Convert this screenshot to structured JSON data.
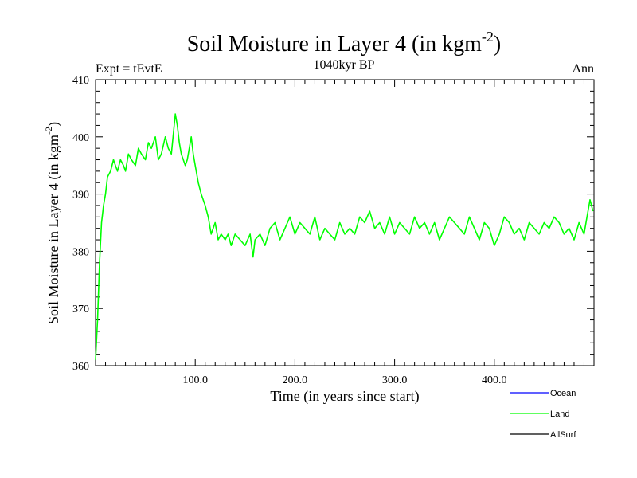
{
  "chart_data": {
    "type": "line",
    "title_main": "Soil Moisture in Layer 4 (in kgm",
    "title_sup": "-2",
    "title_close": ")",
    "subtitle_left": "Expt = tEvtE",
    "subtitle_center": "1040kyr BP",
    "subtitle_right": "Ann",
    "xlabel": "Time (in years since start)",
    "ylabel_main": "Soil Moisture in Layer 4 (in kgm",
    "ylabel_sup": "-2",
    "ylabel_close": ")",
    "xlim": [
      0,
      500
    ],
    "ylim": [
      360,
      410
    ],
    "xticks": [
      100,
      200,
      300,
      400
    ],
    "xtick_labels": [
      "100.0",
      "200.0",
      "300.0",
      "400.0"
    ],
    "yticks": [
      360,
      370,
      380,
      390,
      400,
      410
    ],
    "ytick_labels": [
      "360",
      "370",
      "380",
      "390",
      "400",
      "410"
    ],
    "legend": [
      {
        "name": "Ocean",
        "color": "#0000ff"
      },
      {
        "name": "Land",
        "color": "#00ff00"
      },
      {
        "name": "AllSurf",
        "color": "#000000"
      }
    ],
    "series": [
      {
        "name": "Land",
        "color": "#00ff00",
        "x": [
          0,
          2,
          4,
          6,
          8,
          10,
          12,
          15,
          18,
          20,
          22,
          25,
          28,
          30,
          33,
          36,
          40,
          43,
          46,
          50,
          53,
          56,
          60,
          63,
          66,
          70,
          73,
          76,
          80,
          82,
          84,
          86,
          88,
          90,
          92,
          94,
          96,
          98,
          100,
          103,
          106,
          110,
          113,
          116,
          120,
          123,
          126,
          130,
          133,
          136,
          140,
          145,
          150,
          155,
          158,
          160,
          165,
          170,
          175,
          180,
          185,
          190,
          195,
          200,
          205,
          210,
          215,
          220,
          225,
          230,
          235,
          240,
          245,
          250,
          255,
          260,
          265,
          270,
          275,
          280,
          285,
          290,
          295,
          300,
          305,
          310,
          315,
          320,
          325,
          330,
          335,
          340,
          345,
          350,
          355,
          360,
          365,
          370,
          375,
          380,
          385,
          390,
          395,
          400,
          405,
          410,
          415,
          420,
          425,
          430,
          435,
          440,
          445,
          450,
          455,
          460,
          465,
          470,
          475,
          480,
          485,
          490,
          493,
          496,
          499
        ],
        "values": [
          361,
          368,
          378,
          385,
          388,
          390,
          393,
          394,
          396,
          395,
          394,
          396,
          395,
          394,
          397,
          396,
          395,
          398,
          397,
          396,
          399,
          398,
          400,
          396,
          397,
          400,
          398,
          397,
          404,
          402,
          399,
          397,
          396,
          395,
          396,
          398,
          400,
          397,
          395,
          392,
          390,
          388,
          386,
          383,
          385,
          382,
          383,
          382,
          383,
          381,
          383,
          382,
          381,
          383,
          379,
          382,
          383,
          381,
          384,
          385,
          382,
          384,
          386,
          383,
          385,
          384,
          383,
          386,
          382,
          384,
          383,
          382,
          385,
          383,
          384,
          383,
          386,
          385,
          387,
          384,
          385,
          383,
          386,
          383,
          385,
          384,
          383,
          386,
          384,
          385,
          383,
          385,
          382,
          384,
          386,
          385,
          384,
          383,
          386,
          384,
          382,
          385,
          384,
          381,
          383,
          386,
          385,
          383,
          384,
          382,
          385,
          384,
          383,
          385,
          384,
          386,
          385,
          383,
          384,
          382,
          385,
          383,
          386,
          389,
          387
        ]
      }
    ]
  }
}
